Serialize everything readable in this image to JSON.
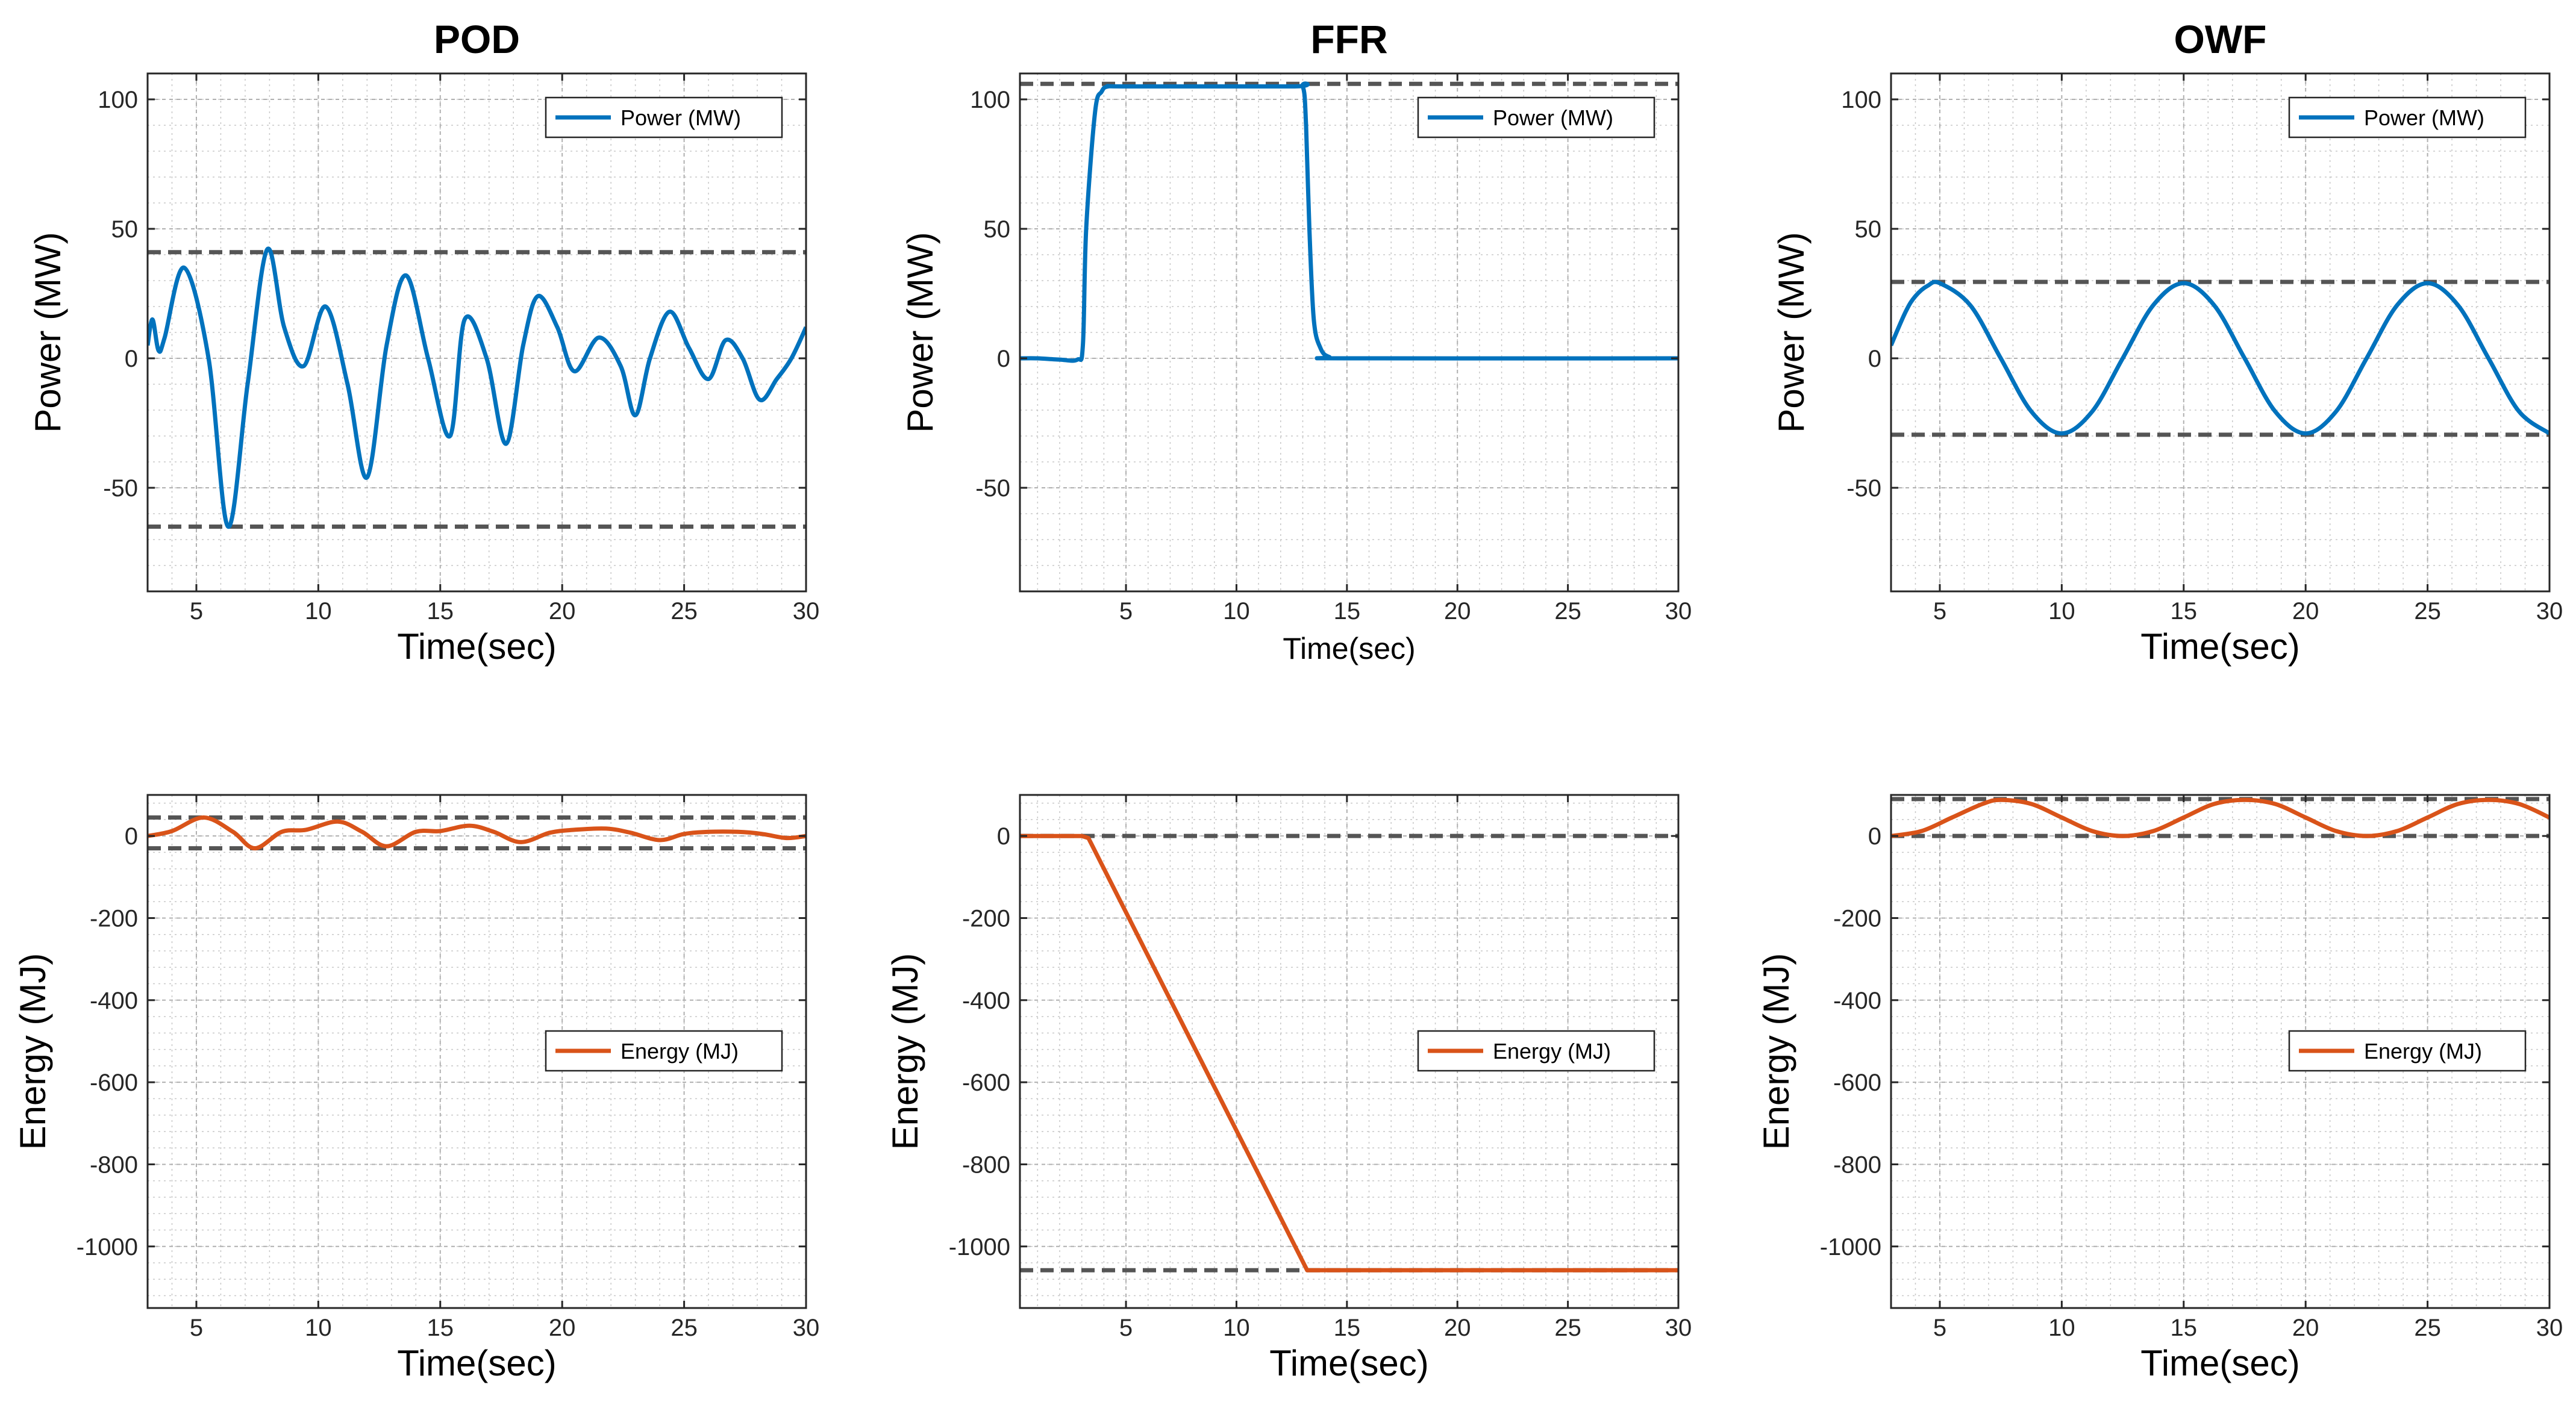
{
  "figure": {
    "panel_titles": [
      "POD",
      "FFR",
      "OWF"
    ]
  },
  "legend_labels": {
    "power": "Power (MW)",
    "energy": "Energy (MJ)"
  },
  "colors": {
    "power": "#0072BD",
    "energy": "#D95319",
    "limit": "#555555"
  },
  "chart_data": [
    {
      "type": "line",
      "title": "POD",
      "xlabel": "Time(sec)",
      "ylabel": "Power (MW)",
      "xlim": [
        3,
        30
      ],
      "ylim": [
        -90,
        110
      ],
      "xticks": [
        5,
        10,
        15,
        20,
        25,
        30
      ],
      "yticks": [
        -50,
        0,
        50,
        100
      ],
      "grid": true,
      "legend": "top-right",
      "legend_entry": "Power (MW)",
      "series": [
        {
          "name": "Power (MW)",
          "x": [
            3.0,
            3.2,
            3.45,
            3.7,
            4.5,
            5.5,
            6.3,
            7.1,
            7.9,
            8.6,
            9.4,
            10.3,
            11.2,
            12.0,
            12.8,
            13.6,
            14.5,
            15.4,
            16.0,
            16.9,
            17.7,
            18.4,
            19.0,
            19.8,
            20.5,
            21.5,
            22.4,
            23.0,
            23.6,
            24.4,
            25.2,
            26.0,
            26.7,
            27.4,
            28.1,
            28.8,
            29.4,
            30.0
          ],
          "y": [
            5,
            15,
            3,
            8,
            35,
            0,
            -65,
            -10,
            42,
            12,
            -3,
            20,
            -10,
            -46,
            5,
            32,
            0,
            -30,
            15,
            0,
            -33,
            5,
            24,
            12,
            -5,
            8,
            -3,
            -22,
            0,
            18,
            4,
            -8,
            7,
            0,
            -16,
            -8,
            0,
            12
          ]
        }
      ],
      "reference_lines": [
        {
          "y": 41
        },
        {
          "y": -65
        }
      ]
    },
    {
      "type": "line",
      "title": "FFR",
      "xlabel": "Time(sec)",
      "ylabel": "Power (MW)",
      "xlim": [
        0.2,
        30
      ],
      "ylim": [
        -90,
        110
      ],
      "xticks": [
        5,
        10,
        15,
        20,
        25,
        30
      ],
      "yticks": [
        -50,
        0,
        50,
        100
      ],
      "grid": true,
      "legend": "top-right",
      "legend_entry": "Power (MW)",
      "series": [
        {
          "name": "Power (MW)",
          "x": [
            0.2,
            1.0,
            2.0,
            2.8,
            3.05,
            3.2,
            3.6,
            3.9,
            4.2,
            5.0,
            12.5,
            13.0,
            13.15,
            13.3,
            13.5,
            13.8,
            14.2,
            15.0,
            30.0
          ],
          "y": [
            0,
            0,
            -0.5,
            -0.5,
            5,
            50,
            95,
            103,
            105,
            105,
            105,
            105,
            90,
            50,
            15,
            4,
            0.5,
            0,
            0
          ]
        }
      ],
      "reference_lines": [
        {
          "y": 106
        }
      ]
    },
    {
      "type": "line",
      "title": "OWF",
      "xlabel": "Time(sec)",
      "ylabel": "Power (MW)",
      "xlim": [
        3,
        30
      ],
      "ylim": [
        -90,
        110
      ],
      "xticks": [
        5,
        10,
        15,
        20,
        25,
        30
      ],
      "yticks": [
        -50,
        0,
        50,
        100
      ],
      "grid": true,
      "legend": "top-right",
      "legend_entry": "Power (MW)",
      "series": [
        {
          "name": "Power (MW)",
          "x": [
            3.0,
            3.6,
            4.0,
            4.5,
            5.0,
            6.25,
            7.5,
            8.75,
            10.0,
            11.25,
            12.5,
            13.75,
            15.0,
            16.25,
            17.5,
            18.75,
            20.0,
            21.25,
            22.5,
            23.75,
            25.0,
            26.25,
            27.5,
            28.75,
            30.0
          ],
          "y": [
            5,
            18,
            24,
            28,
            29,
            20.5,
            0,
            -20.5,
            -29,
            -20.5,
            0,
            20.5,
            29,
            20.5,
            0,
            -20.5,
            -29,
            -20.5,
            0,
            20.5,
            29,
            20.5,
            0,
            -20.5,
            -29
          ]
        }
      ],
      "reference_lines": [
        {
          "y": 29.5
        },
        {
          "y": -29.5
        }
      ]
    },
    {
      "type": "line",
      "title": "",
      "xlabel": "Time(sec)",
      "ylabel": "Energy (MJ)",
      "xlim": [
        3,
        30
      ],
      "ylim": [
        -1150,
        100
      ],
      "xticks": [
        5,
        10,
        15,
        20,
        25,
        30
      ],
      "yticks": [
        -1000,
        -800,
        -600,
        -400,
        -200,
        0
      ],
      "grid": true,
      "legend": "right",
      "legend_entry": "Energy (MJ)",
      "series": [
        {
          "name": "Energy (MJ)",
          "x": [
            3.0,
            4.0,
            5.3,
            6.5,
            7.4,
            8.5,
            9.5,
            10.8,
            11.8,
            12.8,
            14.0,
            15.0,
            16.2,
            17.2,
            18.3,
            19.5,
            20.5,
            21.8,
            22.8,
            24.0,
            25.0,
            26.0,
            27.2,
            28.2,
            29.2,
            30.0
          ],
          "y": [
            0,
            12,
            45,
            10,
            -30,
            10,
            15,
            35,
            10,
            -25,
            10,
            12,
            25,
            10,
            -15,
            8,
            15,
            18,
            8,
            -10,
            5,
            10,
            10,
            5,
            -5,
            0
          ]
        }
      ],
      "reference_lines": [
        {
          "y": 45
        },
        {
          "y": -30
        }
      ]
    },
    {
      "type": "line",
      "title": "",
      "xlabel": "Time(sec)",
      "ylabel": "Energy (MJ)",
      "xlim": [
        0.2,
        30
      ],
      "ylim": [
        -1150,
        100
      ],
      "xticks": [
        5,
        10,
        15,
        20,
        25,
        30
      ],
      "yticks": [
        -1000,
        -800,
        -600,
        -400,
        -200,
        0
      ],
      "grid": true,
      "legend": "right",
      "legend_entry": "Energy (MJ)",
      "series": [
        {
          "name": "Energy (MJ)",
          "x": [
            0.2,
            3.0,
            3.3,
            13.2,
            30.0
          ],
          "y": [
            0,
            0,
            -5,
            -1058,
            -1058
          ]
        }
      ],
      "reference_lines": [
        {
          "y": 0
        },
        {
          "y": -1058
        }
      ]
    },
    {
      "type": "line",
      "title": "",
      "xlabel": "Time(sec)",
      "ylabel": "Energy (MJ)",
      "xlim": [
        3,
        30
      ],
      "ylim": [
        -1150,
        100
      ],
      "xticks": [
        5,
        10,
        15,
        20,
        25,
        30
      ],
      "yticks": [
        -1000,
        -800,
        -600,
        -400,
        -200,
        0
      ],
      "grid": true,
      "legend": "right",
      "legend_entry": "Energy (MJ)",
      "series": [
        {
          "name": "Energy (MJ)",
          "x": [
            3.0,
            4.25,
            5.5,
            6.75,
            7.5,
            8.75,
            10.0,
            11.25,
            12.5,
            13.75,
            15.0,
            16.25,
            17.5,
            18.75,
            20.0,
            21.25,
            22.5,
            23.75,
            25.0,
            26.25,
            27.5,
            28.75,
            30.0
          ],
          "y": [
            0,
            12,
            45,
            78,
            88,
            78,
            45,
            12,
            0,
            12,
            45,
            78,
            88,
            78,
            45,
            12,
            0,
            12,
            45,
            78,
            88,
            78,
            45
          ]
        }
      ],
      "reference_lines": [
        {
          "y": 90
        },
        {
          "y": 0
        }
      ]
    }
  ]
}
